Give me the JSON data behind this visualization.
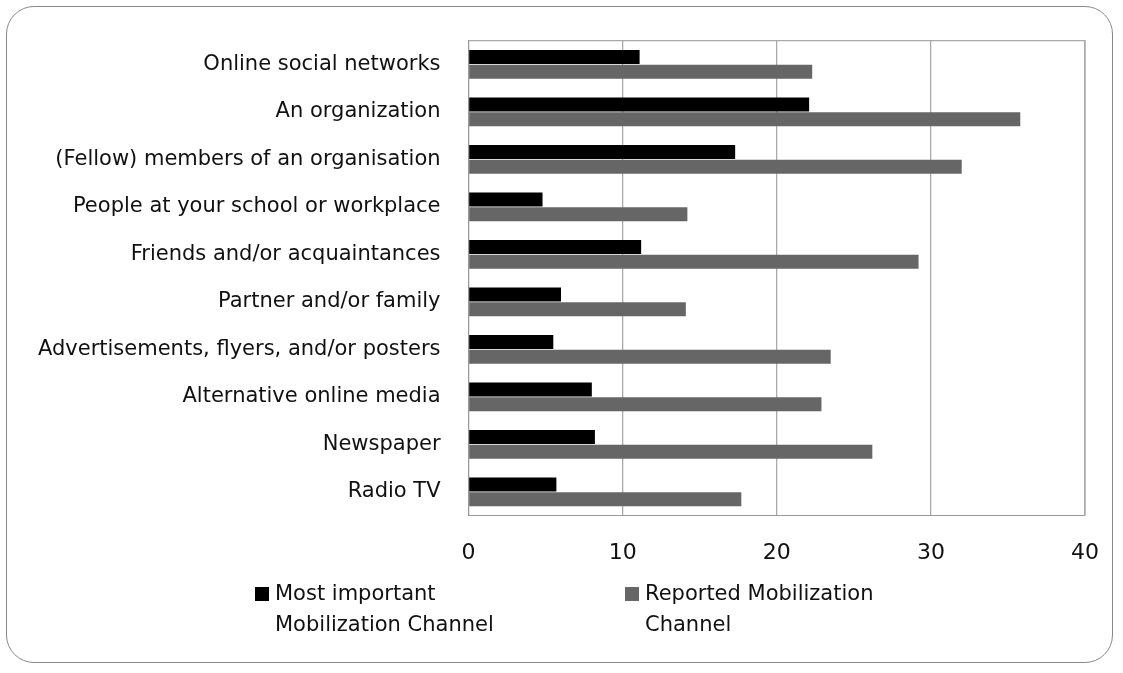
{
  "chart_data": {
    "type": "bar",
    "orientation": "horizontal",
    "categories": [
      "Online social networks",
      "An organization",
      "(Fellow) members of an organisation",
      "People at your school or workplace",
      "Friends and/or acquaintances",
      "Partner and/or family",
      "Advertisements, flyers, and/or posters",
      "Alternative online media",
      "Newspaper",
      "Radio TV"
    ],
    "series": [
      {
        "name": "Most important Mobilization Channel",
        "color": "#000000",
        "values": [
          11.1,
          22.1,
          17.3,
          4.8,
          11.2,
          6.0,
          5.5,
          8.0,
          8.2,
          5.7
        ]
      },
      {
        "name": "Reported Mobilization Channel",
        "color": "#666666",
        "values": [
          22.3,
          35.8,
          32.0,
          14.2,
          29.2,
          14.1,
          23.5,
          22.9,
          26.2,
          17.7
        ]
      }
    ],
    "xlim": [
      0,
      40
    ],
    "xticks": [
      0,
      10,
      20,
      30,
      40
    ],
    "grid": "x",
    "legend": "bottom"
  }
}
